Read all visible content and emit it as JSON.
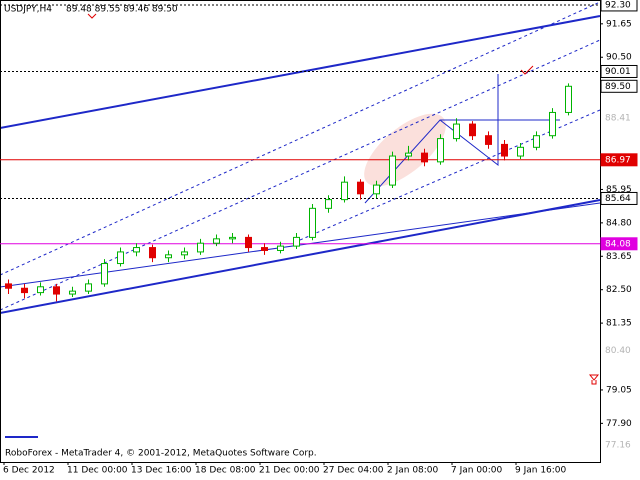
{
  "chart_data": {
    "type": "candlestick",
    "title": "USDJPY,H4",
    "quote": "89.48 89.55 89.46 89.50",
    "footer": "RoboForex - MetaTrader 4, © 2001-2012, MetaQuotes Software Corp.",
    "categories": [
      "6 Dec 2012",
      null,
      null,
      null,
      "11 Dec 00:00",
      null,
      null,
      null,
      "13 Dec 16:00",
      null,
      null,
      null,
      "18 Dec 08:00",
      null,
      null,
      null,
      "21 Dec 00:00",
      null,
      null,
      null,
      "27 Dec 04:00",
      null,
      null,
      null,
      "2 Jan 08:00",
      null,
      null,
      null,
      "7 Jan 00:00",
      null,
      null,
      null,
      "9 Jan 16:00",
      null,
      null,
      null
    ],
    "open": [
      82.7,
      82.55,
      82.4,
      82.6,
      82.35,
      82.45,
      82.7,
      83.4,
      83.8,
      83.95,
      83.6,
      83.7,
      83.8,
      84.1,
      84.25,
      84.3,
      83.95,
      83.85,
      84.0,
      84.3,
      85.3,
      85.6,
      86.2,
      85.8,
      86.1,
      87.1,
      87.2,
      86.9,
      87.7,
      88.2,
      87.8,
      87.5,
      87.1,
      87.4,
      87.8,
      88.6
    ],
    "high": [
      82.85,
      82.7,
      82.75,
      82.7,
      82.6,
      82.85,
      83.55,
      83.95,
      84.1,
      84.05,
      83.85,
      83.95,
      84.25,
      84.4,
      84.45,
      84.4,
      84.1,
      84.15,
      84.45,
      85.45,
      85.75,
      86.4,
      86.3,
      86.25,
      87.25,
      87.45,
      87.35,
      87.85,
      88.4,
      88.3,
      87.95,
      87.65,
      87.55,
      87.95,
      88.75,
      89.6
    ],
    "low": [
      82.35,
      82.2,
      82.3,
      82.1,
      82.25,
      82.35,
      82.6,
      83.3,
      83.65,
      83.45,
      83.45,
      83.55,
      83.7,
      84.0,
      84.1,
      83.8,
      83.7,
      83.75,
      83.9,
      84.2,
      85.15,
      85.5,
      85.6,
      85.65,
      86.0,
      86.95,
      86.75,
      86.8,
      87.6,
      87.65,
      87.35,
      86.95,
      87.0,
      87.3,
      87.7,
      88.5
    ],
    "close": [
      82.55,
      82.4,
      82.6,
      82.35,
      82.45,
      82.7,
      83.4,
      83.8,
      83.95,
      83.6,
      83.7,
      83.8,
      84.1,
      84.25,
      84.3,
      83.95,
      83.85,
      84.0,
      84.3,
      85.3,
      85.6,
      86.2,
      85.8,
      86.1,
      87.1,
      87.2,
      86.9,
      87.7,
      88.2,
      87.8,
      87.5,
      87.1,
      87.4,
      87.8,
      88.6,
      89.5
    ],
    "up_color": "#00b400",
    "down_color": "#e00000",
    "ylim": [
      76.57,
      92.47
    ],
    "yticks": [
      91.65,
      {
        "value": 90.5,
        "label": "90.50"
      },
      85.95,
      {
        "value": 84.8,
        "label": "84.80"
      },
      83.65,
      {
        "value": 82.5,
        "label": "82.50"
      },
      81.35,
      79.05,
      {
        "value": 77.9,
        "label": "77.90"
      }
    ],
    "levels": [
      {
        "value": 92.3,
        "label": "92.30",
        "color": "#000000",
        "line": "dotted",
        "box": true
      },
      {
        "value": 90.01,
        "label": "90.01",
        "color": "#000000",
        "line": "dotted",
        "box": true
      },
      {
        "value": 89.5,
        "label": "89.50",
        "color": "#000000",
        "line": "none",
        "box": true
      },
      {
        "value": 88.41,
        "label": "88.41",
        "color": "#b4b4b4",
        "line": "none",
        "box": false
      },
      {
        "value": 86.97,
        "label": "86.97",
        "color": "#e00000",
        "line": "solid",
        "box": true
      },
      {
        "value": 85.64,
        "label": "85.64",
        "color": "#000000",
        "line": "dotted",
        "box": true
      },
      {
        "value": 84.08,
        "label": "84.08",
        "color": "#e000e0",
        "line": "solid",
        "box": true
      },
      {
        "value": 80.4,
        "label": "80.40",
        "color": "#b4b4b4",
        "line": "none",
        "box": false
      },
      {
        "value": 77.16,
        "label": "77.16",
        "color": "#b4b4b4",
        "line": "none",
        "box": false
      }
    ]
  }
}
